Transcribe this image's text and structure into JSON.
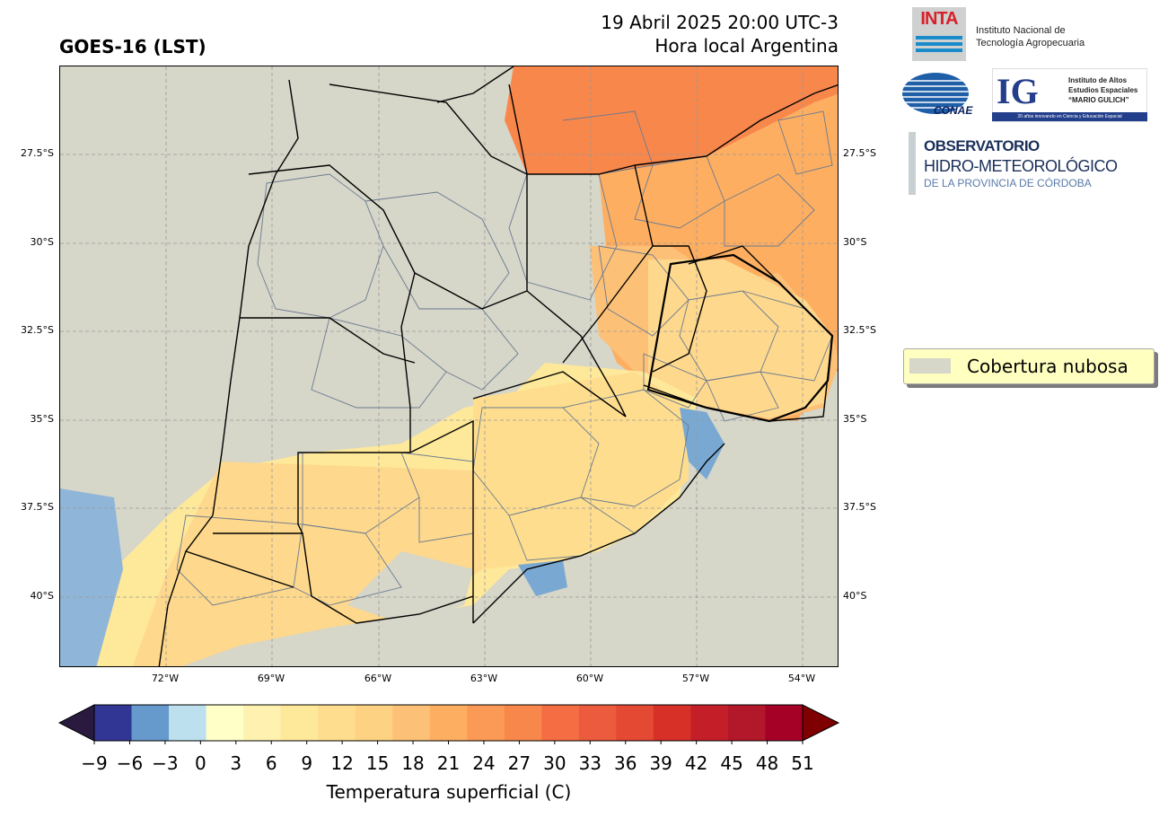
{
  "header": {
    "title": "GOES-16 (LST)",
    "datetime": "19 Abril 2025 20:00 UTC-3",
    "timezone_note": "Hora local Argentina"
  },
  "map": {
    "lat_ticks": [
      "27.5°S",
      "30°S",
      "32.5°S",
      "35°S",
      "37.5°S",
      "40°S"
    ],
    "lon_ticks": [
      "72°W",
      "69°W",
      "66°W",
      "63°W",
      "60°W",
      "57°W",
      "54°W"
    ],
    "cloud_color": "#d6d6c9"
  },
  "logos": {
    "inta_mark": "INTA",
    "inta_name_line1": "Instituto Nacional de",
    "inta_name_line2": "Tecnología Agropecuaria",
    "conae": "CONAE",
    "ig_mark": "IG",
    "ig_line1": "Instituto de Altos",
    "ig_line2": "Estudios Espaciales",
    "ig_line3": "“MARIO GULICH”",
    "ig_strip": "20 años innovando en Ciencia y Educación Espacial",
    "obs_line1": "OBSERVATORIO",
    "obs_line2": "HIDRO-METEOROLÓGICO",
    "obs_line3": "DE LA PROVINCIA DE CÓRDOBA"
  },
  "legend": {
    "label": "Cobertura nubosa"
  },
  "colorbar": {
    "label": "Temperatura superficial (C)",
    "ticks": [
      "−9",
      "−6",
      "−3",
      "0",
      "3",
      "6",
      "9",
      "12",
      "15",
      "18",
      "21",
      "24",
      "27",
      "30",
      "33",
      "36",
      "39",
      "42",
      "45",
      "48",
      "51"
    ],
    "colors": [
      "#313695",
      "#6699cc",
      "#bde0ee",
      "#ffffc8",
      "#fff2b0",
      "#fee89a",
      "#fede8e",
      "#fdd282",
      "#fdc077",
      "#fdae61",
      "#fb9a56",
      "#f8874c",
      "#f46d43",
      "#ec5b3d",
      "#e34933",
      "#d73027",
      "#c41f29",
      "#b3172a",
      "#a50026"
    ],
    "under_color": "#2a1a40",
    "over_color": "#7f0000"
  }
}
